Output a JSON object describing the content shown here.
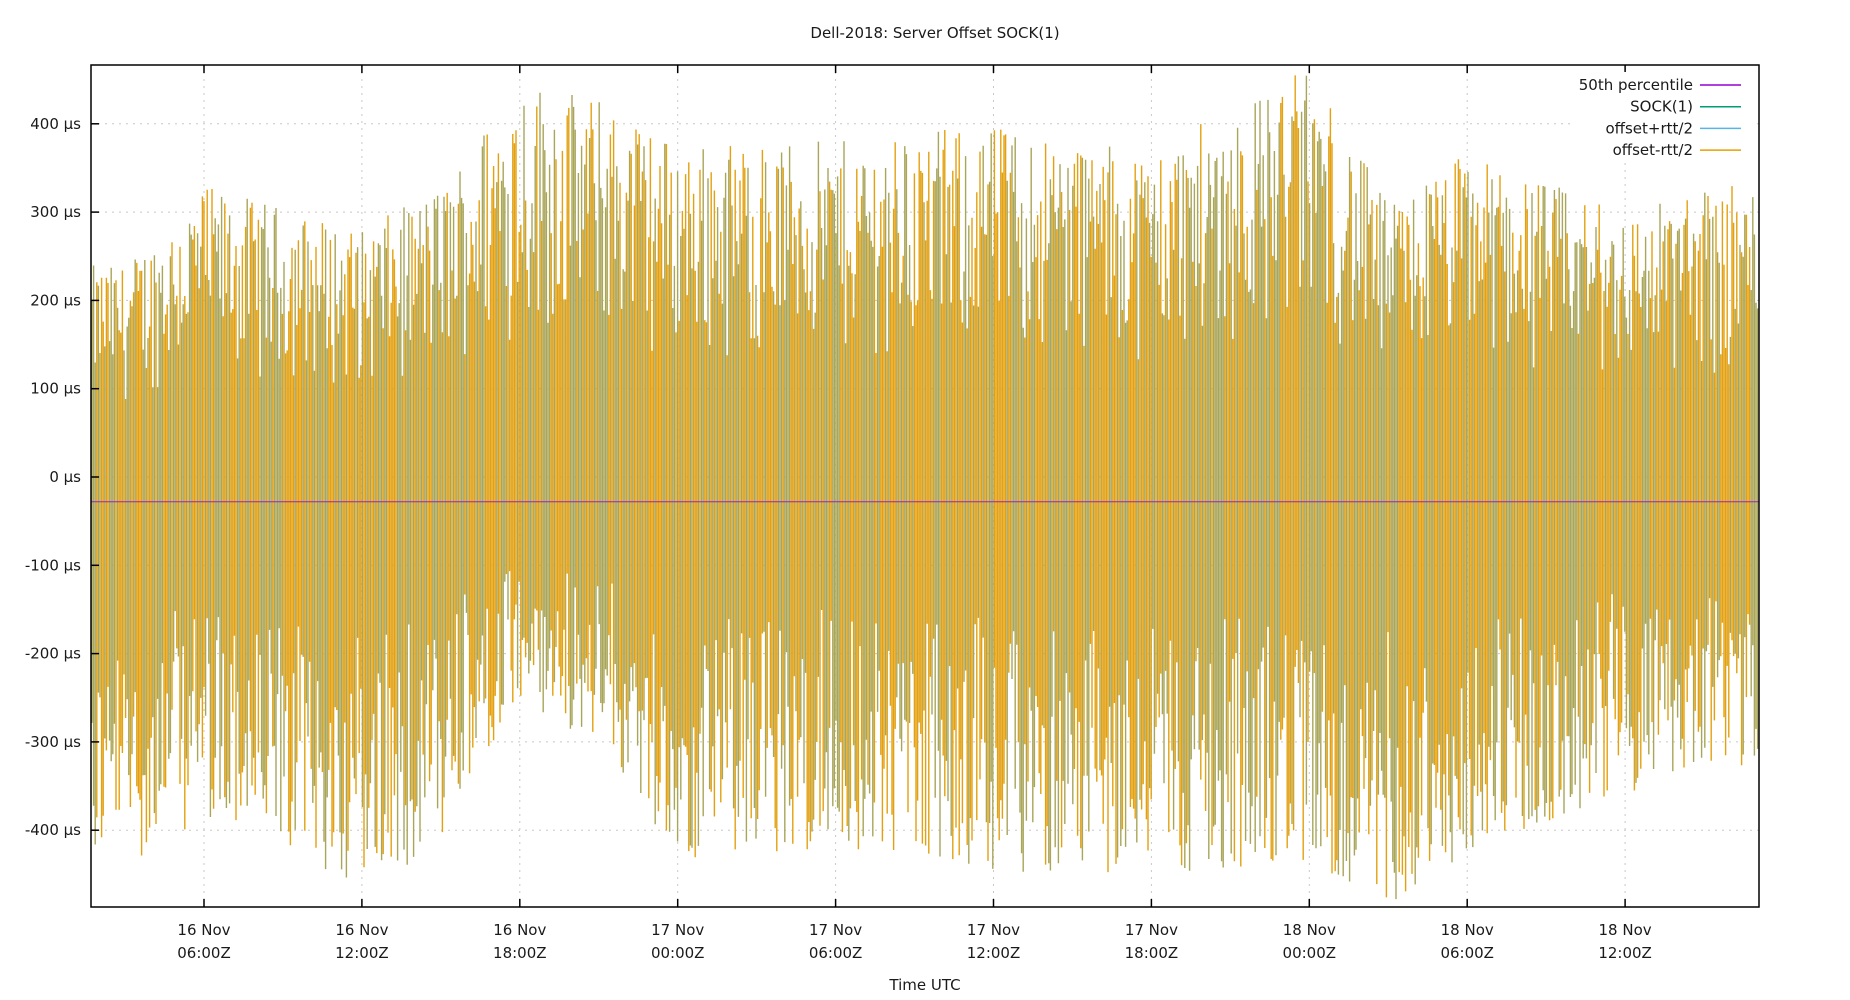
{
  "chart_data": {
    "type": "line",
    "style": "impulses",
    "title": "Dell-2018: Server Offset SOCK(1)",
    "xlabel": "Time UTC",
    "ylabel": "",
    "ylim": [
      -487,
      466
    ],
    "y_unit": "µs",
    "grid": true,
    "legend_position": "top-right-inside",
    "y_ticks": [
      {
        "value": 400,
        "label": "400 µs"
      },
      {
        "value": 300,
        "label": "300 µs"
      },
      {
        "value": 200,
        "label": "200 µs"
      },
      {
        "value": 100,
        "label": "100 µs"
      },
      {
        "value": 0,
        "label": "0 µs"
      },
      {
        "value": -100,
        "label": "-100 µs"
      },
      {
        "value": -200,
        "label": "-200 µs"
      },
      {
        "value": -300,
        "label": "-300 µs"
      },
      {
        "value": -400,
        "label": "-400 µs"
      }
    ],
    "x_ticks": [
      {
        "line1": "16 Nov",
        "line2": "06:00Z"
      },
      {
        "line1": "16 Nov",
        "line2": "12:00Z"
      },
      {
        "line1": "16 Nov",
        "line2": "18:00Z"
      },
      {
        "line1": "17 Nov",
        "line2": "00:00Z"
      },
      {
        "line1": "17 Nov",
        "line2": "06:00Z"
      },
      {
        "line1": "17 Nov",
        "line2": "12:00Z"
      },
      {
        "line1": "17 Nov",
        "line2": "18:00Z"
      },
      {
        "line1": "18 Nov",
        "line2": "00:00Z"
      },
      {
        "line1": "18 Nov",
        "line2": "06:00Z"
      },
      {
        "line1": "18 Nov",
        "line2": "12:00Z"
      }
    ],
    "x_range_hours_from_first_tick": [
      -3.7,
      41.1
    ],
    "series": [
      {
        "name": "50th percentile",
        "color": "#9400d3",
        "constant_value": -28
      },
      {
        "name": "SOCK(1)",
        "color": "#009e73",
        "description": "oscillating offset roughly within ±300 µs, peaks ~±460 µs"
      },
      {
        "name": "offset+rtt/2",
        "color": "#56b4e9"
      },
      {
        "name": "offset-rtt/2",
        "color": "#e69f00"
      }
    ],
    "envelope": [
      {
        "time": "16 Nov 03:00Z",
        "max": 240,
        "min": -440
      },
      {
        "time": "16 Nov 06:00Z",
        "max": 330,
        "min": -390
      },
      {
        "time": "16 Nov 12:00Z",
        "max": 280,
        "min": -470
      },
      {
        "time": "16 Nov 15:00Z",
        "max": 330,
        "min": -420
      },
      {
        "time": "16 Nov 18:00Z",
        "max": 455,
        "min": -260
      },
      {
        "time": "16 Nov 21:00Z",
        "max": 430,
        "min": -300
      },
      {
        "time": "17 Nov 00:00Z",
        "max": 380,
        "min": -440
      },
      {
        "time": "17 Nov 06:00Z",
        "max": 380,
        "min": -420
      },
      {
        "time": "17 Nov 12:00Z",
        "max": 400,
        "min": -450
      },
      {
        "time": "17 Nov 18:00Z",
        "max": 370,
        "min": -450
      },
      {
        "time": "18 Nov 00:00Z",
        "max": 466,
        "min": -440
      },
      {
        "time": "18 Nov 03:00Z",
        "max": 310,
        "min": -487
      },
      {
        "time": "18 Nov 06:00Z",
        "max": 370,
        "min": -430
      },
      {
        "time": "18 Nov 12:00Z",
        "max": 300,
        "min": -360
      },
      {
        "time": "18 Nov 15:00Z",
        "max": 330,
        "min": -330
      }
    ]
  },
  "legend": {
    "items": [
      {
        "label": "50th percentile",
        "color": "#9400d3"
      },
      {
        "label": "SOCK(1)",
        "color": "#009e73"
      },
      {
        "label": "offset+rtt/2",
        "color": "#56b4e9"
      },
      {
        "label": "offset-rtt/2",
        "color": "#e69f00"
      }
    ]
  }
}
